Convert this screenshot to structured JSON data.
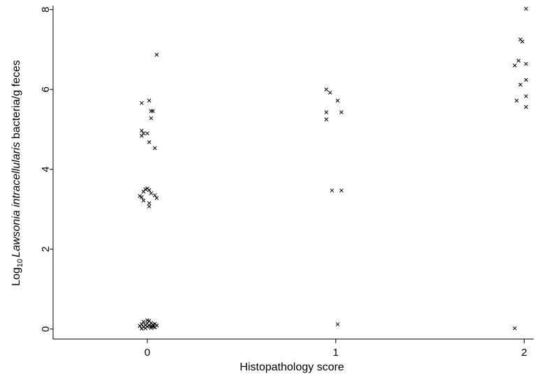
{
  "chart_data": {
    "type": "scatter",
    "xlabel": "Histopathology score",
    "ylabel": {
      "prefix": "Log",
      "subscript": "10",
      "italic": "Lawsonia intracellularis",
      "suffix": " bacteria/g feces"
    },
    "xlim": [
      -0.5,
      2.05
    ],
    "ylim": [
      -0.25,
      8.1
    ],
    "xticks": [
      0,
      1,
      2
    ],
    "yticks": [
      0,
      2,
      4,
      6,
      8
    ],
    "grid": false,
    "marker": "x",
    "color": "#000000",
    "series": [
      {
        "points": [
          [
            0.05,
            6.87
          ],
          [
            -0.03,
            5.66
          ],
          [
            0.01,
            5.72
          ],
          [
            0.02,
            5.46
          ],
          [
            0.03,
            5.46
          ],
          [
            0.02,
            5.28
          ],
          [
            -0.03,
            4.97
          ],
          [
            -0.02,
            4.9
          ],
          [
            -0.03,
            4.84
          ],
          [
            0.0,
            4.9
          ],
          [
            0.01,
            4.68
          ],
          [
            0.04,
            4.53
          ],
          [
            -0.02,
            3.44
          ],
          [
            -0.01,
            3.5
          ],
          [
            0.0,
            3.52
          ],
          [
            0.01,
            3.48
          ],
          [
            0.02,
            3.4
          ],
          [
            0.04,
            3.35
          ],
          [
            0.05,
            3.28
          ],
          [
            -0.04,
            3.33
          ],
          [
            -0.03,
            3.3
          ],
          [
            -0.02,
            3.22
          ],
          [
            0.01,
            3.15
          ],
          [
            0.01,
            3.07
          ],
          [
            -0.04,
            0.08
          ],
          [
            -0.03,
            0.12
          ],
          [
            -0.02,
            0.05
          ],
          [
            -0.02,
            0.18
          ],
          [
            -0.01,
            0.1
          ],
          [
            -0.01,
            0.02
          ],
          [
            0.0,
            0.14
          ],
          [
            0.0,
            0.06
          ],
          [
            0.01,
            0.2
          ],
          [
            0.01,
            0.09
          ],
          [
            0.02,
            0.03
          ],
          [
            0.02,
            0.15
          ],
          [
            0.03,
            0.11
          ],
          [
            0.03,
            0.06
          ],
          [
            0.04,
            0.13
          ],
          [
            0.04,
            0.04
          ],
          [
            0.05,
            0.09
          ],
          [
            -0.03,
            0.01
          ],
          [
            0.0,
            0.22
          ],
          [
            0.02,
            0.07
          ],
          [
            0.95,
            6.0
          ],
          [
            0.97,
            5.92
          ],
          [
            1.01,
            5.72
          ],
          [
            0.95,
            5.43
          ],
          [
            1.03,
            5.43
          ],
          [
            0.95,
            5.25
          ],
          [
            0.98,
            3.47
          ],
          [
            1.03,
            3.47
          ],
          [
            1.01,
            0.12
          ],
          [
            2.01,
            8.02
          ],
          [
            1.98,
            7.25
          ],
          [
            1.99,
            7.2
          ],
          [
            1.97,
            6.72
          ],
          [
            2.01,
            6.64
          ],
          [
            1.95,
            6.6
          ],
          [
            2.01,
            6.24
          ],
          [
            1.98,
            6.12
          ],
          [
            2.01,
            5.83
          ],
          [
            1.96,
            5.72
          ],
          [
            2.01,
            5.56
          ],
          [
            1.95,
            0.02
          ]
        ]
      }
    ]
  }
}
